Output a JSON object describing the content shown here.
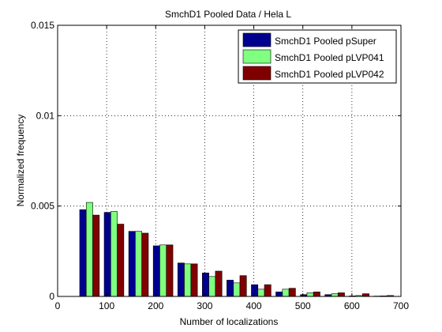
{
  "chart_data": {
    "type": "bar",
    "title": "SmchD1 Pooled Data / Hela L",
    "xlabel": "Number of localizations",
    "ylabel": "Normalized frequency",
    "xlim": [
      0,
      700
    ],
    "ylim": [
      0,
      0.015
    ],
    "x_ticks": [
      0,
      100,
      200,
      300,
      400,
      500,
      600,
      700
    ],
    "x_tick_labels": [
      "0",
      "100",
      "200",
      "300",
      "400",
      "500",
      "600",
      "700"
    ],
    "y_ticks": [
      0,
      0.005,
      0.01,
      0.015
    ],
    "y_tick_labels": [
      "0",
      "0.005",
      "0.01",
      "0.015"
    ],
    "grid": true,
    "legend_position": "top-right",
    "x": [
      65,
      115,
      165,
      215,
      265,
      315,
      365,
      415,
      465,
      515,
      565,
      615,
      665
    ],
    "series": [
      {
        "name": "SmchD1 Pooled pSuper",
        "color": "#00008f",
        "values": [
          0.0048,
          0.00465,
          0.0036,
          0.0028,
          0.00185,
          0.0013,
          0.0009,
          0.00065,
          0.00025,
          0.0001,
          0.0001,
          3e-05,
          2e-05
        ]
      },
      {
        "name": "SmchD1 Pooled pLVP041",
        "color": "#80ff80",
        "values": [
          0.0052,
          0.0047,
          0.0036,
          0.00285,
          0.0018,
          0.0011,
          0.00075,
          0.0004,
          0.0004,
          0.0002,
          0.00015,
          5e-05,
          3e-05
        ]
      },
      {
        "name": "SmchD1 Pooled pLVP042",
        "color": "#800000",
        "values": [
          0.0045,
          0.004,
          0.0035,
          0.00285,
          0.0018,
          0.0014,
          0.00115,
          0.00065,
          0.00045,
          0.00025,
          0.0002,
          0.00015,
          5e-05
        ]
      }
    ]
  }
}
